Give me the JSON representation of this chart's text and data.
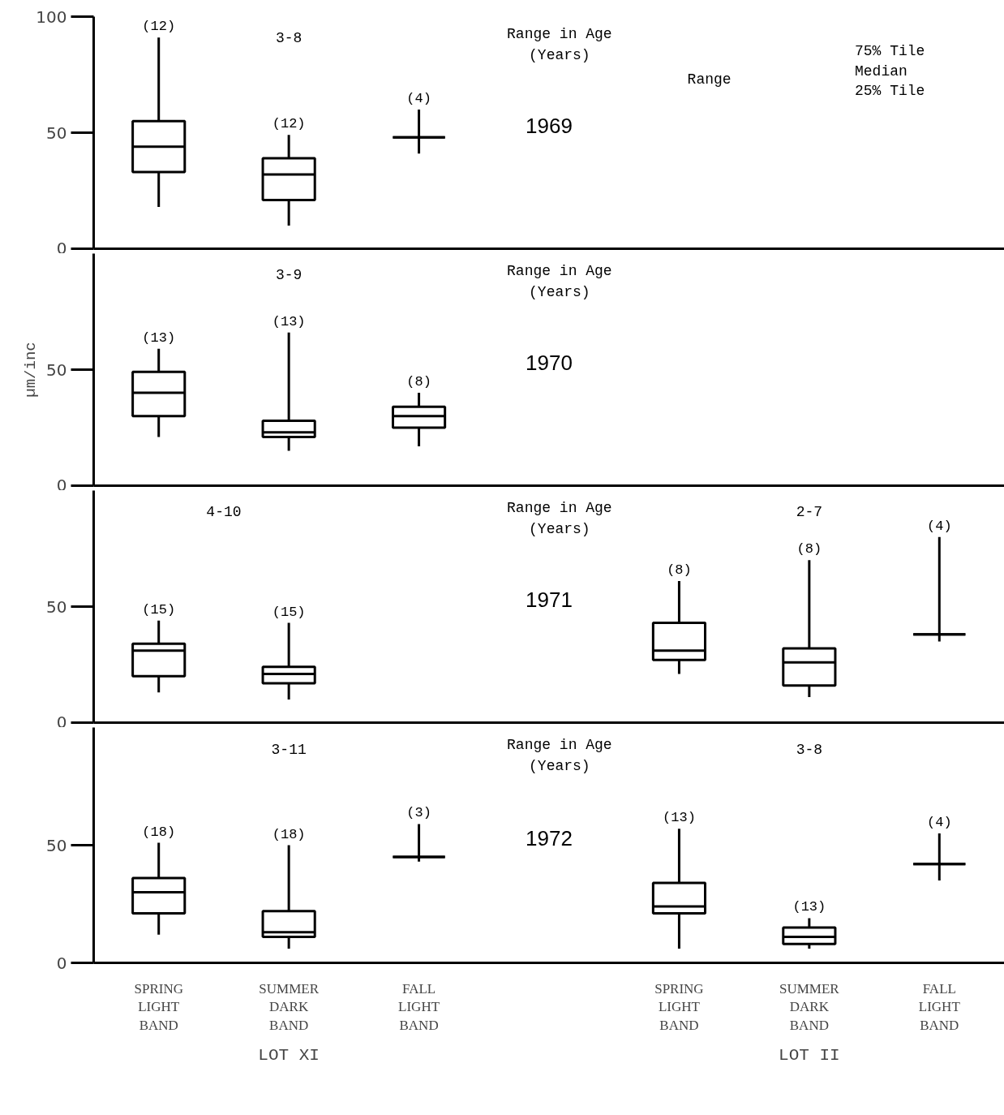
{
  "chart_data": [
    {
      "type": "box",
      "title": "1969",
      "subtitle": "Range in Age\n(Years)",
      "boxes": [
        {
          "low": 18,
          "q1": 33,
          "median": 44,
          "q3": 55,
          "high": 91
        },
        {
          "low": 10,
          "q1": 21,
          "median": 32,
          "q3": 39,
          "high": 49
        },
        {
          "low": 41,
          "q1": 48,
          "median": 48,
          "q3": 48,
          "high": 60
        },
        null,
        null,
        null,
        null
      ],
      "value_labels": [
        "(12)",
        "(12)",
        "(4)",
        null,
        null,
        null,
        null
      ],
      "annotations": [
        "3-8",
        "Range",
        "75% Tile",
        "Median",
        "25% Tile"
      ],
      "ylim": [
        0,
        100
      ],
      "yticks": [
        0,
        50,
        100
      ],
      "tick_labels": "y"
    },
    {
      "type": "box",
      "title": "1970",
      "subtitle": "Range in Age\n(Years)",
      "ylabel": "µm/inc",
      "boxes": [
        {
          "low": 21,
          "q1": 30,
          "median": 40,
          "q3": 49,
          "high": 59
        },
        {
          "low": 15,
          "q1": 21,
          "median": 23,
          "q3": 28,
          "high": 66
        },
        {
          "low": 17,
          "q1": 25,
          "median": 30,
          "q3": 34,
          "high": 40
        },
        null,
        null,
        null,
        null
      ],
      "value_labels": [
        "(13)",
        "(13)",
        "(8)",
        null,
        null,
        null,
        null
      ],
      "annotations": [
        "3-9"
      ],
      "ylim": [
        0,
        100
      ],
      "yticks": [
        0,
        50
      ],
      "tick_labels": "y"
    },
    {
      "type": "box",
      "title": "1971",
      "subtitle": "Range in Age\n(Years)",
      "boxes": [
        {
          "low": 13,
          "q1": 20,
          "median": 31,
          "q3": 34,
          "high": 44
        },
        {
          "low": 10,
          "q1": 17,
          "median": 21,
          "q3": 24,
          "high": 43
        },
        null,
        null,
        {
          "low": 21,
          "q1": 27,
          "median": 31,
          "q3": 43,
          "high": 61
        },
        {
          "low": 11,
          "q1": 16,
          "median": 26,
          "q3": 32,
          "high": 70
        },
        {
          "low": 35,
          "q1": 38,
          "median": 38,
          "q3": 38,
          "high": 80
        }
      ],
      "value_labels": [
        "(15)",
        "(15)",
        null,
        null,
        "(8)",
        "(8)",
        "(4)"
      ],
      "annotations": [
        "4-10",
        "2-7"
      ],
      "ylim": [
        0,
        100
      ],
      "yticks": [
        0,
        50
      ],
      "tick_labels": "y"
    },
    {
      "type": "box",
      "title": "1972",
      "subtitle": "Range in Age\n(Years)",
      "categories": [
        "SPRING\nLIGHT\nBAND",
        "SUMMER\nDARK\nBAND",
        "FALL\nLIGHT\nBAND",
        null,
        "SPRING\nLIGHT\nBAND",
        "SUMMER\nDARK\nBAND",
        "FALL\nLIGHT\nBAND"
      ],
      "boxes": [
        {
          "low": 12,
          "q1": 21,
          "median": 30,
          "q3": 36,
          "high": 51
        },
        {
          "low": 6,
          "q1": 11,
          "median": 13,
          "q3": 22,
          "high": 50
        },
        {
          "low": 43,
          "q1": 45,
          "median": 45,
          "q3": 45,
          "high": 59
        },
        null,
        {
          "low": 6,
          "q1": 21,
          "median": 24,
          "q3": 34,
          "high": 57
        },
        {
          "low": 6,
          "q1": 8,
          "median": 11,
          "q3": 15,
          "high": 19
        },
        {
          "low": 35,
          "q1": 42,
          "median": 42,
          "q3": 42,
          "high": 55
        }
      ],
      "value_labels": [
        "(18)",
        "(18)",
        "(3)",
        null,
        "(13)",
        "(13)",
        "(4)"
      ],
      "annotations": [
        "3-11",
        "3-8",
        "LOT XI",
        "LOT II"
      ],
      "ylim": [
        0,
        100
      ],
      "yticks": [
        0,
        50
      ]
    }
  ]
}
